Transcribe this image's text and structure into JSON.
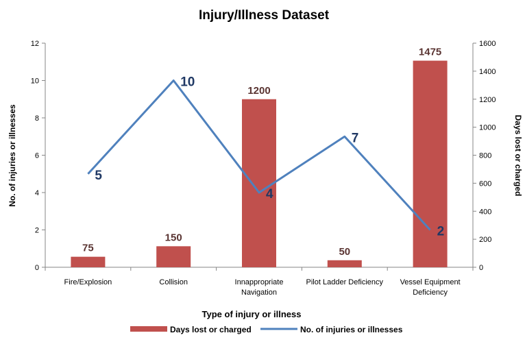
{
  "chart_data": {
    "type": "bar",
    "title": "Injury/Illness Dataset",
    "xlabel": "Type of injury or illness",
    "ylabel_left": "No. of injuries or illnesses",
    "ylabel_right": "Days lost or charged",
    "categories": [
      [
        "Fire/Explosion"
      ],
      [
        "Collision"
      ],
      [
        "Innappropriate",
        "Navigation"
      ],
      [
        "Pilot Ladder Deficiency"
      ],
      [
        "Vessel Equipment",
        "Deficiency"
      ]
    ],
    "series": [
      {
        "name": "Days lost or charged",
        "type": "bar",
        "axis": "right",
        "color": "#c0504d",
        "values": [
          75,
          150,
          1200,
          50,
          1475
        ],
        "labels": [
          "75",
          "150",
          "1200",
          "50",
          "1475"
        ]
      },
      {
        "name": "No. of injuries or illnesses",
        "type": "line",
        "axis": "left",
        "color": "#4f81bd",
        "values": [
          5,
          10,
          4,
          7,
          2
        ],
        "labels": [
          "5",
          "10",
          "4",
          "7",
          "2"
        ]
      }
    ],
    "ylim_left": [
      0,
      12
    ],
    "yticks_left": [
      0,
      2,
      4,
      6,
      8,
      10,
      12
    ],
    "ylim_right": [
      0,
      1600
    ],
    "yticks_right": [
      0,
      200,
      400,
      600,
      800,
      1000,
      1200,
      1400,
      1600
    ],
    "grid": false,
    "legend_position": "bottom"
  }
}
